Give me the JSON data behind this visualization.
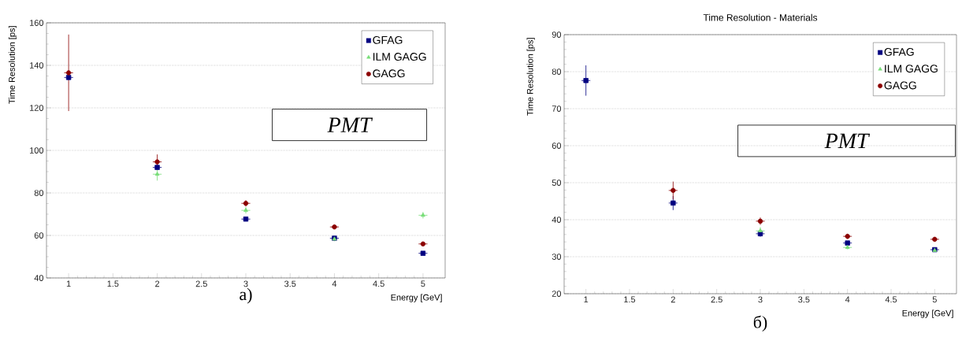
{
  "chart_data": [
    {
      "type": "scatter",
      "xlabel": "Energy [GeV]",
      "ylabel": "Time Resolution [ps]",
      "x": [
        1,
        2,
        3,
        4,
        5
      ],
      "xlim": [
        0.75,
        5.25
      ],
      "ylim": [
        40,
        160
      ],
      "xticks": [
        1,
        1.5,
        2,
        2.5,
        3,
        3.5,
        4,
        4.5,
        5
      ],
      "yticks": [
        40,
        60,
        80,
        100,
        120,
        140,
        160
      ],
      "grid": "y",
      "legend": "top right",
      "series": [
        {
          "name": "GFAG",
          "color": "#000080",
          "marker": "square",
          "values": [
            134.3,
            92,
            67.7,
            58.7,
            51.6
          ],
          "errors": [
            1,
            1,
            1,
            0.8,
            0.6
          ],
          "xerrors": [
            0.05,
            0.05,
            0.05,
            0.05,
            0.05
          ]
        },
        {
          "name": "ILM GAGG",
          "color": "#77dd77",
          "marker": "triangle",
          "values": [
            null,
            88.8,
            71.8,
            58.3,
            69.5
          ],
          "errors": [
            null,
            3,
            1.5,
            1,
            1.5
          ],
          "xerrors": [
            null,
            0.05,
            0.05,
            null,
            0.05
          ]
        },
        {
          "name": "GAGG",
          "color": "#8b0000",
          "marker": "circle",
          "values": [
            136.5,
            94.6,
            75.1,
            64,
            56
          ],
          "errors": [
            18,
            3.5,
            1.5,
            1,
            0.7
          ],
          "xerrors": [
            0.05,
            0.05,
            0.05,
            0.05,
            0.05
          ]
        }
      ],
      "annotations": [
        "PMT",
        "а)"
      ]
    },
    {
      "type": "scatter",
      "title": "Time Resolution - Materials",
      "xlabel": "Energy [GeV]",
      "ylabel": "Time Resolution [ps]",
      "x": [
        1,
        2,
        3,
        4,
        5
      ],
      "xlim": [
        0.75,
        5.25
      ],
      "ylim": [
        20,
        90
      ],
      "xticks": [
        1,
        1.5,
        2,
        2.5,
        3,
        3.5,
        4,
        4.5,
        5
      ],
      "yticks": [
        20,
        30,
        40,
        50,
        60,
        70,
        80,
        90
      ],
      "grid": "y",
      "legend": "top right",
      "series": [
        {
          "name": "GFAG",
          "color": "#000080",
          "marker": "square",
          "values": [
            77.6,
            44.5,
            36.2,
            33.7,
            31.9
          ],
          "errors": [
            4.1,
            1.9,
            0.8,
            0.5,
            0.4
          ],
          "xerrors": [
            0.05,
            0.05,
            0.05,
            0.05,
            0.05
          ]
        },
        {
          "name": "ILM GAGG",
          "color": "#77dd77",
          "marker": "triangle",
          "values": [
            null,
            null,
            37,
            32.5,
            31.7
          ],
          "errors": [
            null,
            null,
            1,
            0.5,
            0.4
          ],
          "xerrors": [
            null,
            null,
            0.05,
            0.05,
            null
          ]
        },
        {
          "name": "GAGG",
          "color": "#8b0000",
          "marker": "circle",
          "values": [
            null,
            47.9,
            39.6,
            35.5,
            34.7
          ],
          "errors": [
            null,
            2.4,
            1,
            0.7,
            0.5
          ],
          "xerrors": [
            null,
            0.05,
            0.05,
            0.05,
            0.05
          ]
        }
      ],
      "annotations": [
        "PMT",
        "б)"
      ]
    }
  ]
}
